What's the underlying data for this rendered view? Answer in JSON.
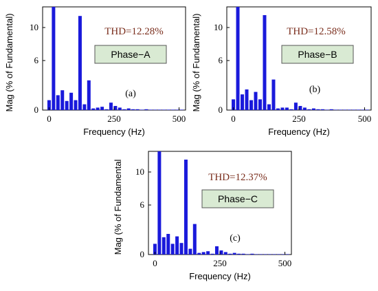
{
  "chart_data": [
    {
      "type": "bar",
      "panel_label": "(a)",
      "thd_label": "THD=12.28%",
      "phase_label": "Phase−A",
      "xlabel": "Frequency (Hz)",
      "ylabel": "Mag (% of Fundamental)",
      "xlim": [
        -25,
        525
      ],
      "ylim": [
        0,
        12.5
      ],
      "xticks": [
        0,
        250,
        500
      ],
      "yticks": [
        0,
        6,
        10
      ],
      "x": [
        0,
        17,
        34,
        51,
        68,
        85,
        102,
        119,
        136,
        153,
        170,
        187,
        204,
        221,
        238,
        255,
        272,
        289,
        306,
        323,
        340,
        357,
        374,
        391,
        408,
        425,
        442,
        459,
        476,
        493,
        510
      ],
      "values": [
        1.2,
        12.5,
        1.8,
        2.4,
        1.1,
        2.1,
        1.2,
        11.4,
        0.7,
        3.6,
        0.2,
        0.3,
        0.4,
        0.1,
        0.9,
        0.5,
        0.3,
        0.1,
        0.2,
        0.1,
        0.1,
        0.05,
        0.1,
        0.05,
        0.05,
        0.05,
        0.05,
        0.05,
        0.05,
        0.05,
        0.05
      ]
    },
    {
      "type": "bar",
      "panel_label": "(b)",
      "thd_label": "THD=12.58%",
      "phase_label": "Phase−B",
      "xlabel": "Frequency (Hz)",
      "ylabel": "Mag (% of Fundamental)",
      "xlim": [
        -25,
        525
      ],
      "ylim": [
        0,
        12.5
      ],
      "xticks": [
        0,
        250,
        500
      ],
      "yticks": [
        0,
        6,
        10
      ],
      "x": [
        0,
        17,
        34,
        51,
        68,
        85,
        102,
        119,
        136,
        153,
        170,
        187,
        204,
        221,
        238,
        255,
        272,
        289,
        306,
        323,
        340,
        357,
        374,
        391,
        408,
        425,
        442,
        459,
        476,
        493,
        510
      ],
      "values": [
        1.3,
        12.5,
        1.9,
        2.5,
        1.2,
        2.2,
        1.3,
        11.5,
        0.7,
        3.7,
        0.2,
        0.3,
        0.3,
        0.1,
        0.9,
        0.5,
        0.3,
        0.1,
        0.2,
        0.1,
        0.1,
        0.05,
        0.1,
        0.05,
        0.05,
        0.05,
        0.05,
        0.05,
        0.05,
        0.05,
        0.05
      ]
    },
    {
      "type": "bar",
      "panel_label": "(c)",
      "thd_label": "THD=12.37%",
      "phase_label": "Phase−C",
      "xlabel": "Frequency (Hz)",
      "ylabel": "Mag (% of Fundamental",
      "xlim": [
        -25,
        525
      ],
      "ylim": [
        0,
        12.5
      ],
      "xticks": [
        0,
        250,
        500
      ],
      "yticks": [
        0,
        6,
        10
      ],
      "x": [
        0,
        17,
        34,
        51,
        68,
        85,
        102,
        119,
        136,
        153,
        170,
        187,
        204,
        221,
        238,
        255,
        272,
        289,
        306,
        323,
        340,
        357,
        374,
        391,
        408,
        425,
        442,
        459,
        476,
        493,
        510
      ],
      "values": [
        1.3,
        12.5,
        2.1,
        2.5,
        1.3,
        2.2,
        1.4,
        11.5,
        0.7,
        3.7,
        0.2,
        0.3,
        0.4,
        0.1,
        1.0,
        0.5,
        0.3,
        0.1,
        0.2,
        0.1,
        0.1,
        0.05,
        0.1,
        0.05,
        0.05,
        0.05,
        0.05,
        0.05,
        0.05,
        0.05,
        0.05
      ]
    }
  ],
  "colors": {
    "bar": "#1a1adb",
    "phase_box_fill": "#d9ead3",
    "phase_box_stroke": "#555555",
    "thd_text": "#7a2e1d"
  }
}
